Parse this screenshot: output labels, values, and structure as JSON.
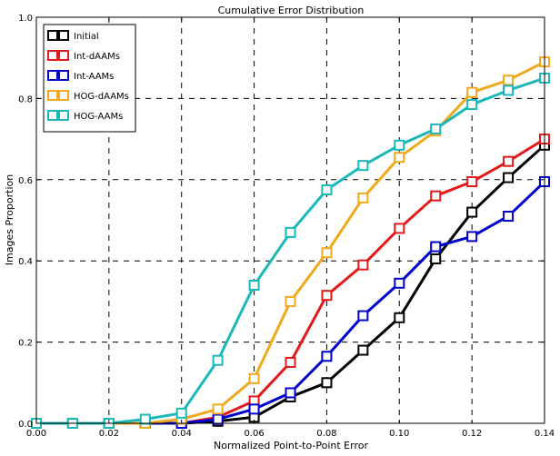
{
  "chart_data": {
    "type": "line",
    "title": "Cumulative Error Distribution",
    "xlabel": "Normalized Point-to-Point Error",
    "ylabel": "Images Proportion",
    "xlim": [
      0,
      0.14
    ],
    "ylim": [
      0,
      1.0
    ],
    "grid": true,
    "grid_style": "dashed",
    "legend_position": "top-left",
    "x_ticks": [
      "0.00",
      "0.02",
      "0.04",
      "0.06",
      "0.08",
      "0.10",
      "0.12",
      "0.14"
    ],
    "y_ticks": [
      "0.0",
      "0.2",
      "0.4",
      "0.6",
      "0.8",
      "1.0"
    ],
    "x": [
      0.0,
      0.01,
      0.02,
      0.03,
      0.04,
      0.05,
      0.06,
      0.07,
      0.08,
      0.09,
      0.1,
      0.11,
      0.12,
      0.13,
      0.14
    ],
    "series": [
      {
        "name": "Initial",
        "color": "#000000",
        "marker": "square",
        "values": [
          0.0,
          0.0,
          0.0,
          0.0,
          0.0,
          0.005,
          0.015,
          0.065,
          0.1,
          0.18,
          0.26,
          0.405,
          0.52,
          0.605,
          0.685
        ]
      },
      {
        "name": "Int-dAAMs",
        "color": "#e41a1a",
        "marker": "square",
        "values": [
          0.0,
          0.0,
          0.0,
          0.0,
          0.0,
          0.015,
          0.055,
          0.15,
          0.315,
          0.39,
          0.48,
          0.56,
          0.595,
          0.645,
          0.7
        ]
      },
      {
        "name": "Int-AAMs",
        "color": "#0000cc",
        "marker": "square",
        "values": [
          0.0,
          0.0,
          0.0,
          0.0,
          0.0,
          0.01,
          0.035,
          0.075,
          0.165,
          0.265,
          0.345,
          0.435,
          0.46,
          0.51,
          0.595
        ]
      },
      {
        "name": "HOG-dAAMs",
        "color": "#f0a81c",
        "marker": "square",
        "values": [
          0.0,
          0.0,
          0.0,
          0.0,
          0.01,
          0.035,
          0.11,
          0.3,
          0.42,
          0.555,
          0.655,
          0.72,
          0.815,
          0.845,
          0.89
        ]
      },
      {
        "name": "HOG-AAMs",
        "color": "#1ab8b8",
        "marker": "square",
        "values": [
          0.0,
          0.0,
          0.0,
          0.01,
          0.025,
          0.155,
          0.34,
          0.47,
          0.575,
          0.635,
          0.685,
          0.725,
          0.785,
          0.82,
          0.85
        ]
      }
    ]
  }
}
